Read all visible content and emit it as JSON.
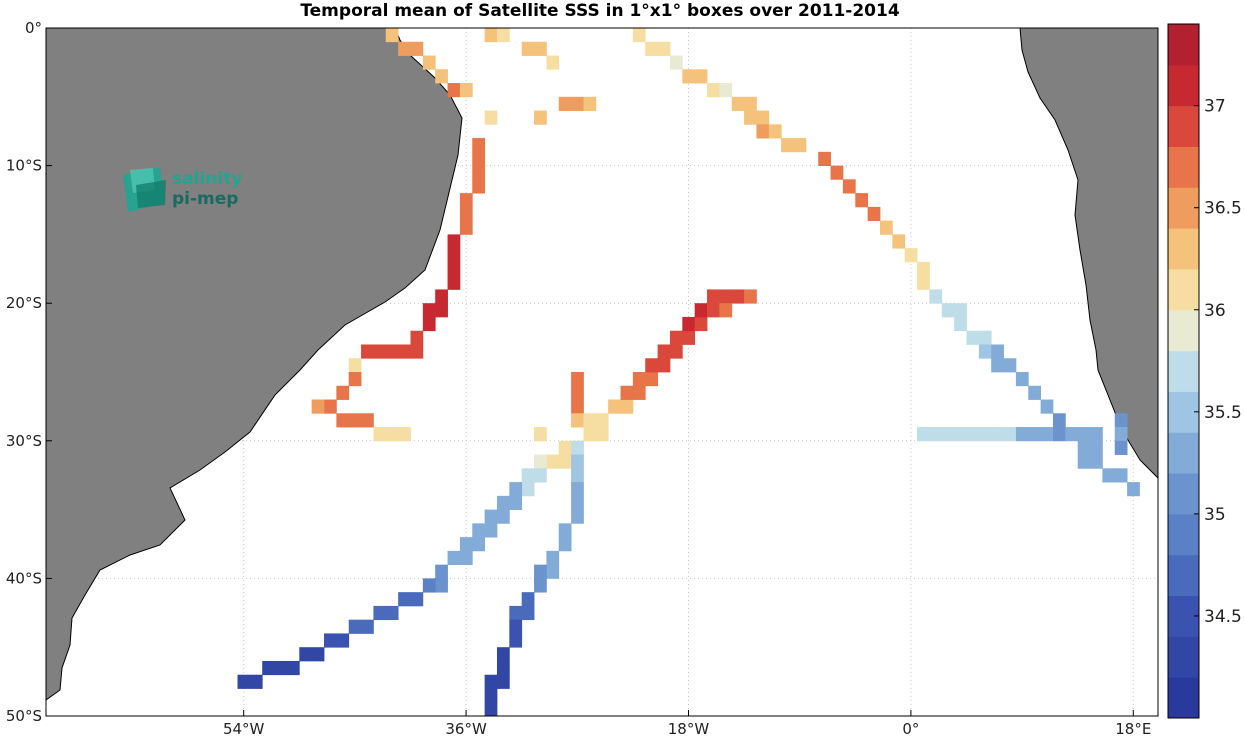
{
  "title": "Temporal mean of Satellite SSS in 1°x1° boxes over 2011-2014",
  "logo": {
    "line1": "salinity",
    "line2": "pi-mep",
    "color1": "#20a592",
    "color2": "#176b60"
  },
  "axes": {
    "lon_range": [
      -70,
      20
    ],
    "lat_range": [
      -50,
      0
    ],
    "x_ticks": [
      {
        "value": -54,
        "label": "54°W"
      },
      {
        "value": -36,
        "label": "36°W"
      },
      {
        "value": -18,
        "label": "18°W"
      },
      {
        "value": 0,
        "label": "0°"
      },
      {
        "value": 18,
        "label": "18°E"
      }
    ],
    "y_ticks": [
      {
        "value": 0,
        "label": "0°"
      },
      {
        "value": -10,
        "label": "10°S"
      },
      {
        "value": -20,
        "label": "20°S"
      },
      {
        "value": -30,
        "label": "30°S"
      },
      {
        "value": -40,
        "label": "40°S"
      },
      {
        "value": -50,
        "label": "50°S"
      }
    ],
    "grid": "dotted"
  },
  "colorbar": {
    "range": [
      34.0,
      37.4
    ],
    "ticks": [
      34.5,
      35,
      35.5,
      36,
      36.5,
      37
    ],
    "tick_labels": [
      "34.5",
      "35",
      "35.5",
      "36",
      "36.5",
      "37"
    ],
    "colors": [
      "#2a3a9c",
      "#3246a6",
      "#3a52b0",
      "#4a6bbb",
      "#5a80c5",
      "#6b94ce",
      "#82acd7",
      "#9ec5e1",
      "#bfdde9",
      "#e8ead3",
      "#f6dea2",
      "#f4c27a",
      "#ef9c5f",
      "#e77549",
      "#d9483b",
      "#c62a30",
      "#b3202f"
    ]
  },
  "land_color": "#808080",
  "chart_data": {
    "type": "heatmap",
    "variable": "Satellite SSS",
    "cells": [
      [
        -42,
        -0.5,
        36.4
      ],
      [
        -41,
        -1.5,
        36.5
      ],
      [
        -40,
        -1.5,
        36.5
      ],
      [
        -39,
        -2.5,
        36.3
      ],
      [
        -38,
        -3.5,
        36.4
      ],
      [
        -37,
        -4.5,
        36.6
      ],
      [
        -36,
        -4.5,
        36.2
      ],
      [
        -34,
        -6.5,
        36.1
      ],
      [
        -34,
        -0.5,
        36.2
      ],
      [
        -33,
        -0.5,
        36.1
      ],
      [
        -31,
        -1.5,
        36.4
      ],
      [
        -30,
        -1.5,
        36.3
      ],
      [
        -29,
        -2.5,
        36.1
      ],
      [
        -30,
        -6.5,
        36.3
      ],
      [
        -28,
        -5.5,
        36.5
      ],
      [
        -27,
        -5.5,
        36.5
      ],
      [
        -26,
        -5.5,
        36.2
      ],
      [
        -35,
        -8.5,
        36.8
      ],
      [
        -35,
        -9.5,
        36.8
      ],
      [
        -35,
        -10.5,
        36.8
      ],
      [
        -35,
        -11.5,
        36.8
      ],
      [
        -36,
        -12.5,
        36.8
      ],
      [
        -36,
        -13.5,
        36.8
      ],
      [
        -36,
        -14.5,
        36.8
      ],
      [
        -37,
        -15.5,
        37.0
      ],
      [
        -37,
        -16.5,
        37.0
      ],
      [
        -37,
        -17.5,
        37.0
      ],
      [
        -37,
        -18.5,
        37.0
      ],
      [
        -38,
        -19.5,
        37.0
      ],
      [
        -38,
        -20.5,
        37.0
      ],
      [
        -39,
        -20.5,
        37.0
      ],
      [
        -39,
        -21.5,
        37.0
      ],
      [
        -40,
        -22.5,
        36.9
      ],
      [
        -40,
        -23.5,
        36.9
      ],
      [
        -41,
        -23.5,
        36.9
      ],
      [
        -42,
        -23.5,
        36.9
      ],
      [
        -43,
        -23.5,
        36.9
      ],
      [
        -44,
        -23.5,
        36.9
      ],
      [
        -45,
        -24.5,
        36.1
      ],
      [
        -45,
        -25.5,
        36.6
      ],
      [
        -46,
        -26.5,
        36.8
      ],
      [
        -47,
        -27.5,
        36.7
      ],
      [
        -48,
        -27.5,
        36.5
      ],
      [
        -45,
        -28.5,
        36.7
      ],
      [
        -46,
        -28.5,
        36.8
      ],
      [
        -44,
        -28.5,
        36.6
      ],
      [
        -43,
        -29.5,
        36.1
      ],
      [
        -42,
        -29.5,
        36.1
      ],
      [
        -41,
        -29.5,
        36.1
      ],
      [
        -27,
        -25.5,
        36.8
      ],
      [
        -27,
        -26.5,
        36.8
      ],
      [
        -27,
        -27.5,
        36.8
      ],
      [
        -27,
        -28.5,
        36.3
      ],
      [
        -26,
        -28.5,
        36.1
      ],
      [
        -25,
        -28.5,
        36.1
      ],
      [
        -26,
        -29.5,
        36.0
      ],
      [
        -25,
        -29.5,
        36.0
      ],
      [
        -24,
        -27.5,
        36.4
      ],
      [
        -23,
        -27.5,
        36.4
      ],
      [
        -23,
        -26.5,
        36.6
      ],
      [
        -22,
        -26.5,
        36.6
      ],
      [
        -22,
        -25.5,
        36.8
      ],
      [
        -21,
        -25.5,
        36.8
      ],
      [
        -21,
        -24.5,
        36.9
      ],
      [
        -20,
        -24.5,
        36.9
      ],
      [
        -20,
        -23.5,
        36.9
      ],
      [
        -19,
        -23.5,
        36.9
      ],
      [
        -19,
        -22.5,
        36.9
      ],
      [
        -18,
        -22.5,
        36.9
      ],
      [
        -18,
        -21.5,
        37.0
      ],
      [
        -17,
        -21.5,
        36.9
      ],
      [
        -17,
        -20.5,
        37.0
      ],
      [
        -16,
        -20.5,
        36.9
      ],
      [
        -16,
        -19.5,
        36.9
      ],
      [
        -15,
        -19.5,
        36.9
      ],
      [
        -14,
        -19.5,
        36.9
      ],
      [
        -15,
        -20.5,
        36.8
      ],
      [
        -13,
        -19.5,
        36.6
      ],
      [
        -28,
        -30.5,
        36.1
      ],
      [
        -28,
        -31.5,
        36.0
      ],
      [
        -27,
        -30.5,
        36.1
      ],
      [
        -29,
        -31.5,
        36.1
      ],
      [
        -30,
        -31.5,
        35.9
      ],
      [
        -30,
        -32.5,
        35.8
      ],
      [
        -31,
        -32.5,
        35.8
      ],
      [
        -31,
        -33.5,
        35.6
      ],
      [
        -32,
        -33.5,
        35.4
      ],
      [
        -32,
        -34.5,
        35.4
      ],
      [
        -33,
        -34.5,
        35.4
      ],
      [
        -33,
        -35.5,
        35.3
      ],
      [
        -34,
        -35.5,
        35.3
      ],
      [
        -34,
        -36.5,
        35.3
      ],
      [
        -35,
        -36.5,
        35.4
      ],
      [
        -35,
        -37.5,
        35.3
      ],
      [
        -36,
        -37.5,
        35.3
      ],
      [
        -36,
        -38.5,
        35.2
      ],
      [
        -37,
        -38.5,
        35.2
      ],
      [
        -38,
        -39.5,
        35.0
      ],
      [
        -38,
        -40.5,
        35.0
      ],
      [
        -39,
        -40.5,
        34.9
      ],
      [
        -40,
        -41.5,
        34.8
      ],
      [
        -41,
        -41.5,
        34.8
      ],
      [
        -42,
        -42.5,
        34.7
      ],
      [
        -43,
        -42.5,
        34.7
      ],
      [
        -44,
        -43.5,
        34.6
      ],
      [
        -45,
        -43.5,
        34.6
      ],
      [
        -46,
        -44.5,
        34.5
      ],
      [
        -47,
        -44.5,
        34.5
      ],
      [
        -48,
        -45.5,
        34.4
      ],
      [
        -49,
        -45.5,
        34.4
      ],
      [
        -50,
        -46.5,
        34.3
      ],
      [
        -51,
        -46.5,
        34.3
      ],
      [
        -52,
        -46.5,
        34.3
      ],
      [
        -53,
        -47.5,
        34.2
      ],
      [
        -54,
        -47.5,
        34.2
      ],
      [
        -30,
        -29.5,
        36.0
      ],
      [
        -27,
        -30.5,
        35.6
      ],
      [
        -27,
        -31.5,
        35.5
      ],
      [
        -27,
        -32.5,
        35.5
      ],
      [
        -27,
        -33.5,
        35.3
      ],
      [
        -27,
        -34.5,
        35.3
      ],
      [
        -27,
        -35.5,
        35.3
      ],
      [
        -28,
        -36.5,
        35.3
      ],
      [
        -28,
        -37.5,
        35.3
      ],
      [
        -29,
        -38.5,
        35.2
      ],
      [
        -29,
        -39.5,
        35.2
      ],
      [
        -30,
        -39.5,
        35.1
      ],
      [
        -30,
        -40.5,
        35.1
      ],
      [
        -31,
        -41.5,
        34.7
      ],
      [
        -31,
        -42.5,
        34.6
      ],
      [
        -32,
        -42.5,
        34.6
      ],
      [
        -32,
        -43.5,
        34.5
      ],
      [
        -32,
        -44.5,
        34.5
      ],
      [
        -33,
        -45.5,
        34.4
      ],
      [
        -33,
        -46.5,
        34.3
      ],
      [
        -33,
        -47.5,
        34.2
      ],
      [
        -34,
        -47.5,
        34.2
      ],
      [
        -34,
        -48.5,
        34.2
      ],
      [
        -34,
        -49.5,
        34.2
      ],
      [
        -22,
        -0.5,
        36.0
      ],
      [
        -21,
        -1.5,
        36.0
      ],
      [
        -20,
        -1.5,
        36.0
      ],
      [
        -19,
        -2.5,
        35.9
      ],
      [
        -18,
        -3.5,
        36.2
      ],
      [
        -17,
        -3.5,
        36.2
      ],
      [
        -16,
        -4.5,
        36.1
      ],
      [
        -15,
        -4.5,
        35.9
      ],
      [
        -14,
        -5.5,
        36.3
      ],
      [
        -13,
        -5.5,
        36.3
      ],
      [
        -13,
        -6.5,
        36.3
      ],
      [
        -12,
        -6.5,
        36.3
      ],
      [
        -12,
        -7.5,
        36.5
      ],
      [
        -11,
        -7.5,
        36.2
      ],
      [
        -10,
        -8.5,
        36.4
      ],
      [
        -9,
        -8.5,
        36.4
      ],
      [
        -7,
        -9.5,
        36.6
      ],
      [
        -6,
        -10.5,
        36.8
      ],
      [
        -5,
        -11.5,
        36.6
      ],
      [
        -4,
        -12.5,
        36.8
      ],
      [
        -3,
        -13.5,
        36.6
      ],
      [
        -2,
        -14.5,
        36.3
      ],
      [
        -1,
        -15.5,
        36.2
      ],
      [
        0,
        -16.5,
        36.0
      ],
      [
        1,
        -17.5,
        36.0
      ],
      [
        1,
        -18.5,
        36.0
      ],
      [
        2,
        -19.5,
        35.8
      ],
      [
        3,
        -20.5,
        35.7
      ],
      [
        4,
        -20.5,
        35.7
      ],
      [
        4,
        -21.5,
        35.7
      ],
      [
        5,
        -22.5,
        35.6
      ],
      [
        6,
        -22.5,
        35.6
      ],
      [
        6,
        -23.5,
        35.5
      ],
      [
        7,
        -23.5,
        35.3
      ],
      [
        7,
        -24.5,
        35.3
      ],
      [
        8,
        -24.5,
        35.3
      ],
      [
        9,
        -25.5,
        35.3
      ],
      [
        10,
        -26.5,
        35.3
      ],
      [
        11,
        -27.5,
        35.2
      ],
      [
        12,
        -28.5,
        35.1
      ],
      [
        1,
        -29.5,
        35.8
      ],
      [
        2,
        -29.5,
        35.7
      ],
      [
        3,
        -29.5,
        35.7
      ],
      [
        4,
        -29.5,
        35.7
      ],
      [
        5,
        -29.5,
        35.7
      ],
      [
        6,
        -29.5,
        35.7
      ],
      [
        7,
        -29.5,
        35.7
      ],
      [
        8,
        -29.5,
        35.6
      ],
      [
        9,
        -29.5,
        35.4
      ],
      [
        10,
        -29.5,
        35.4
      ],
      [
        11,
        -29.5,
        35.2
      ],
      [
        12,
        -29.5,
        35.1
      ],
      [
        13,
        -29.5,
        35.2
      ],
      [
        14,
        -29.5,
        35.3
      ],
      [
        15,
        -29.5,
        35.3
      ],
      [
        14,
        -30.5,
        35.3
      ],
      [
        15,
        -30.5,
        35.3
      ],
      [
        17,
        -28.5,
        35.1
      ],
      [
        17,
        -29.5,
        35.2
      ],
      [
        17,
        -30.5,
        35.1
      ],
      [
        14,
        -31.5,
        35.2
      ],
      [
        15,
        -31.5,
        35.2
      ],
      [
        16,
        -32.5,
        35.2
      ],
      [
        17,
        -32.5,
        35.2
      ],
      [
        18,
        -33.5,
        35.3
      ]
    ]
  }
}
